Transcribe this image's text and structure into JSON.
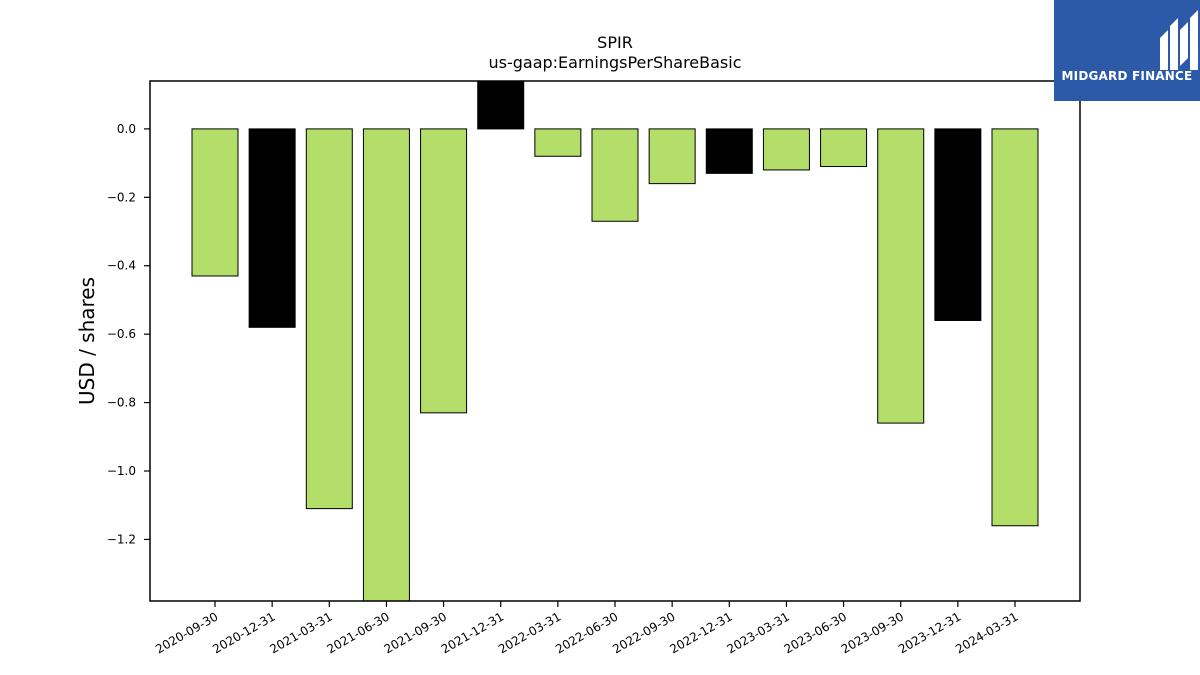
{
  "chart_data": {
    "type": "bar",
    "title": "SPIR",
    "subtitle": "us-gaap:EarningsPerShareBasic",
    "xlabel": "",
    "ylabel": "USD / shares",
    "ylim": [
      -1.38,
      0.14
    ],
    "yticks": [
      "0.0",
      "-0.2",
      "-0.4",
      "-0.6",
      "-0.8",
      "-1.0",
      "-1.2"
    ],
    "ytick_values": [
      0.0,
      -0.2,
      -0.4,
      -0.6,
      -0.8,
      -1.0,
      -1.2
    ],
    "categories": [
      "2020-09-30",
      "2020-12-31",
      "2021-03-31",
      "2021-06-30",
      "2021-09-30",
      "2021-12-31",
      "2022-03-31",
      "2022-06-30",
      "2022-09-30",
      "2022-12-31",
      "2023-03-31",
      "2023-06-30",
      "2023-09-30",
      "2023-12-31",
      "2024-03-31"
    ],
    "values": [
      -0.43,
      -0.58,
      -1.11,
      -1.47,
      -0.83,
      0.16,
      -0.08,
      -0.27,
      -0.16,
      -0.13,
      -0.12,
      -0.11,
      -0.86,
      -0.56,
      -1.16
    ],
    "bar_colors": [
      "#b3de69",
      "#000000",
      "#b3de69",
      "#b3de69",
      "#b3de69",
      "#000000",
      "#b3de69",
      "#b3de69",
      "#b3de69",
      "#000000",
      "#b3de69",
      "#b3de69",
      "#b3de69",
      "#000000",
      "#b3de69"
    ],
    "grid": false,
    "legend": "none"
  },
  "logo": {
    "text": "MIDGARD FINANCE",
    "background": "#2c5aa8"
  }
}
